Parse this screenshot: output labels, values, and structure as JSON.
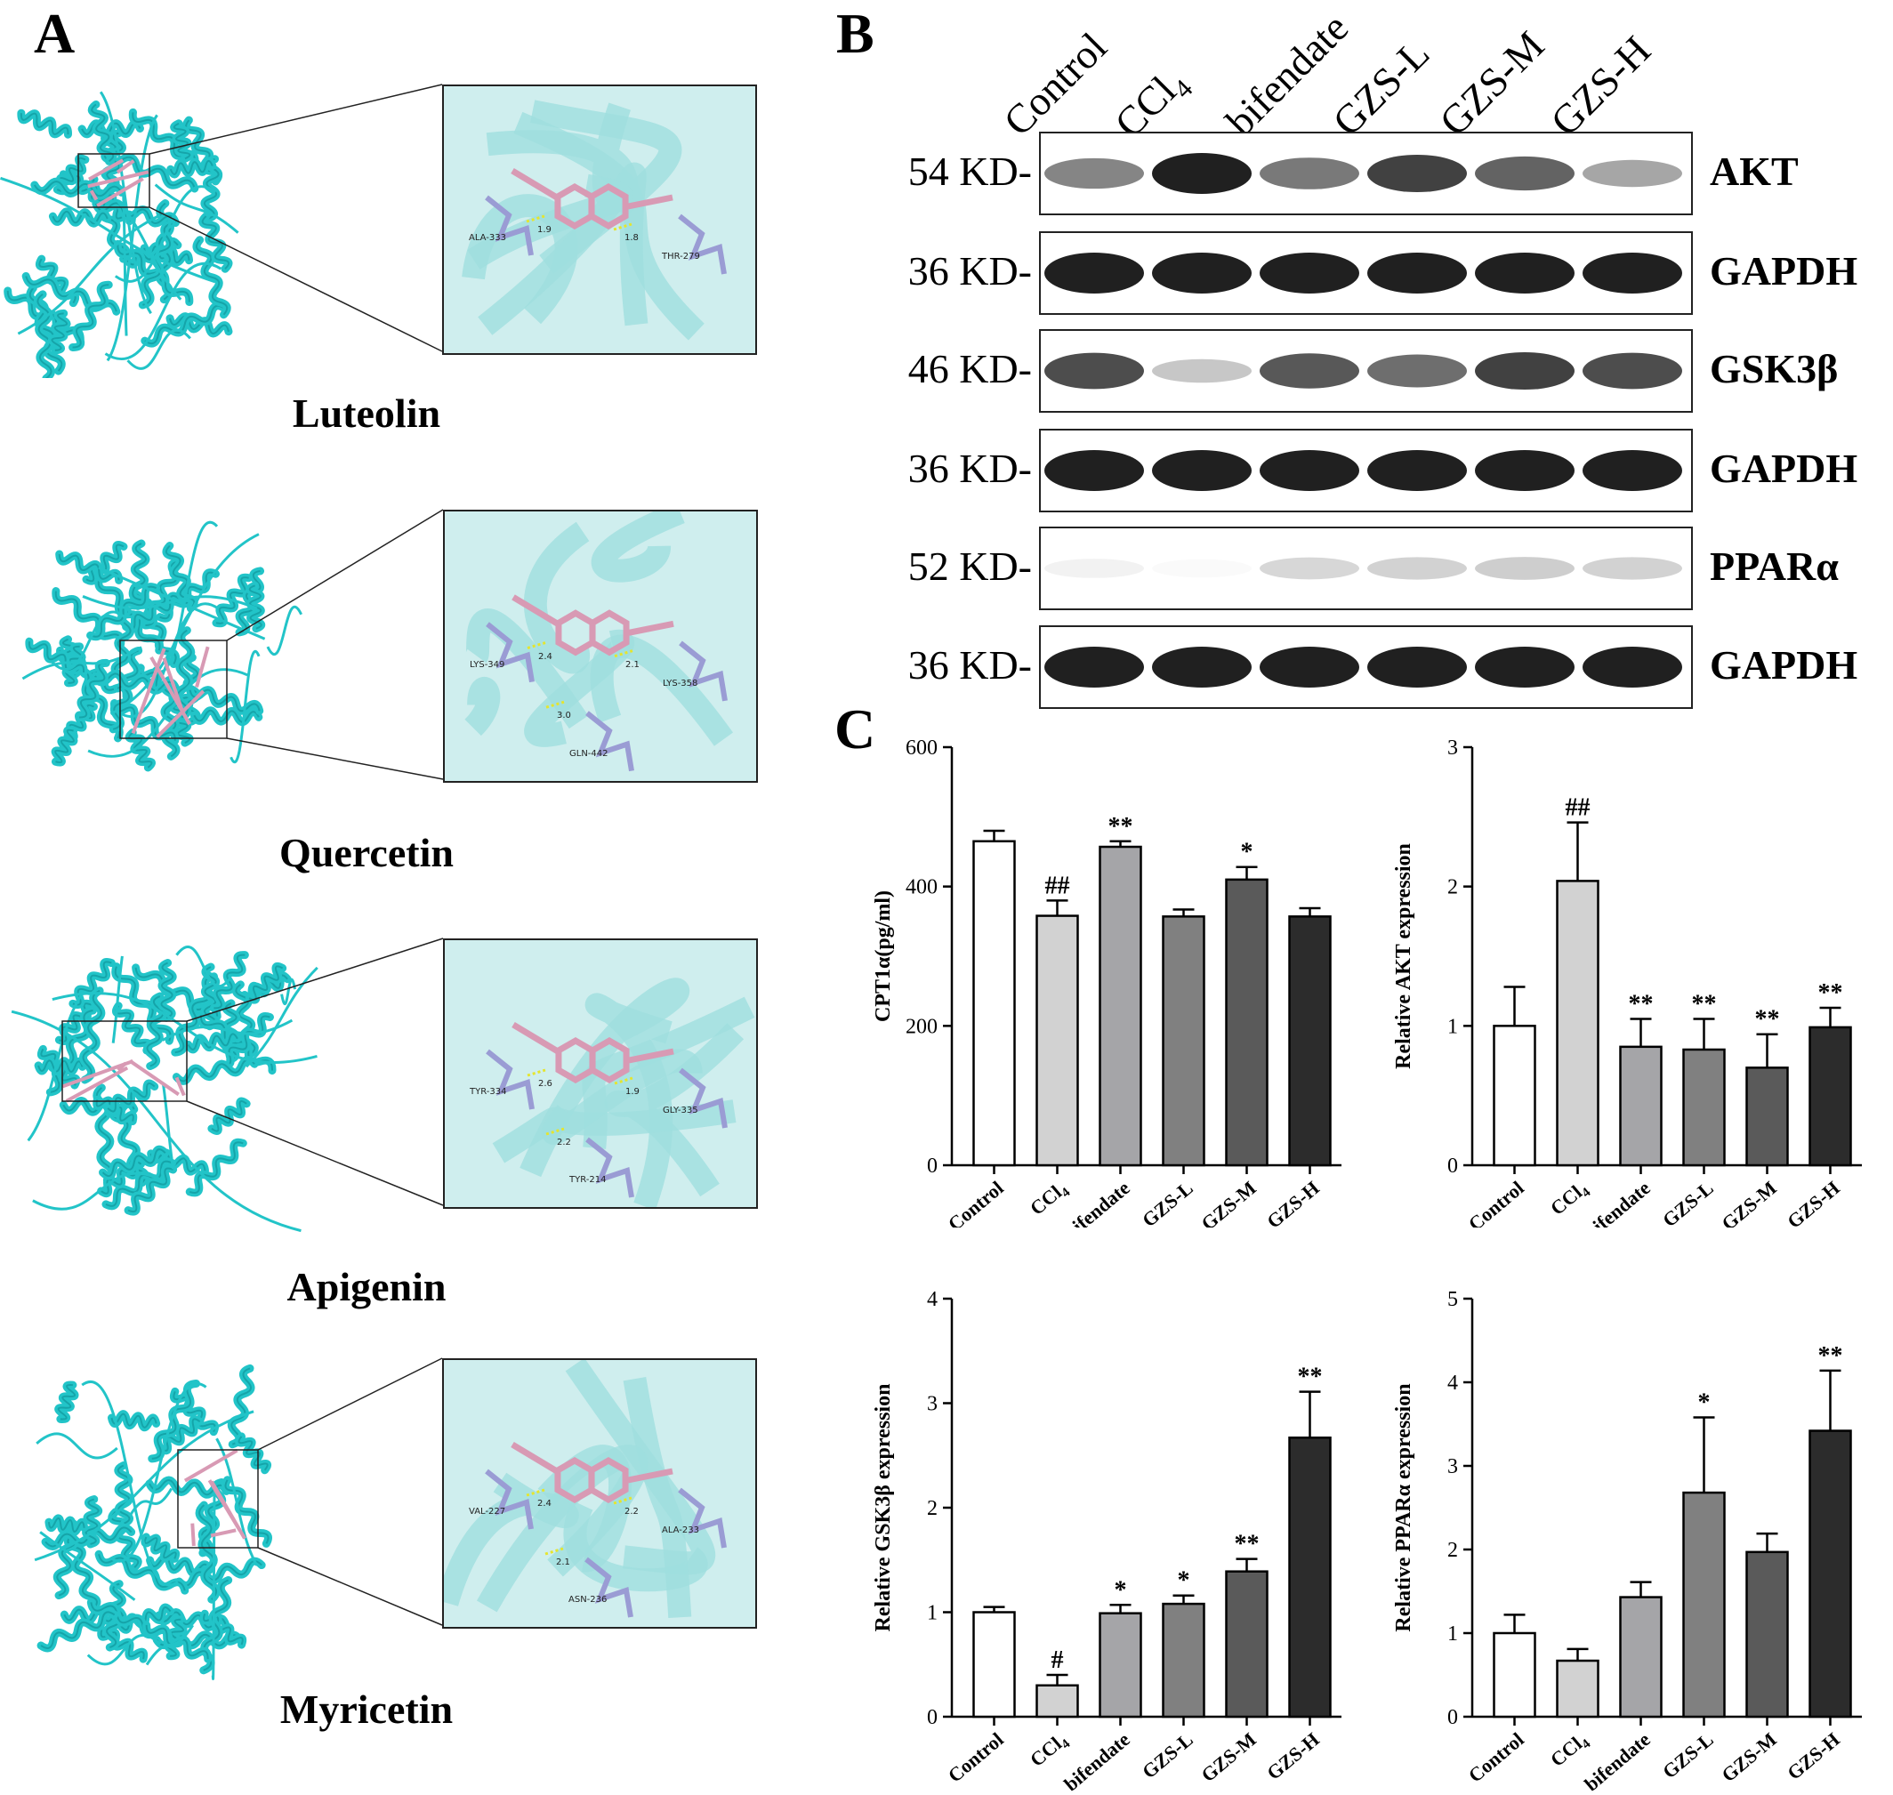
{
  "panels": {
    "a": "A",
    "b": "B",
    "c": "C"
  },
  "docking": [
    {
      "name": "Luteolin",
      "residues": [
        "ALA-333",
        "THR-279"
      ],
      "distances": [
        "1.9",
        "1.8"
      ]
    },
    {
      "name": "Quercetin",
      "residues": [
        "LYS-349",
        "LYS-358",
        "GLN-442"
      ],
      "distances": [
        "2.4",
        "2.1",
        "3.0"
      ]
    },
    {
      "name": "Apigenin",
      "residues": [
        "TYR-334",
        "GLY-335",
        "TYR-214"
      ],
      "distances": [
        "2.6",
        "1.9",
        "2.2"
      ]
    },
    {
      "name": "Myricetin",
      "residues": [
        "VAL-227",
        "ALA-233",
        "ASN-236"
      ],
      "distances": [
        "2.4",
        "2.2",
        "2.1"
      ]
    }
  ],
  "western": {
    "lanes": [
      "Control",
      "CCl",
      "bifendate",
      "GZS-L",
      "GZS-M",
      "GZS-H"
    ],
    "lane_subscript": "4",
    "rows": [
      {
        "kd": "54 KD-",
        "protein": "AKT",
        "intensity": [
          0.55,
          1.0,
          0.6,
          0.85,
          0.7,
          0.4
        ]
      },
      {
        "kd": "36 KD-",
        "protein": "GAPDH",
        "intensity": [
          1,
          1,
          1,
          1,
          1,
          1
        ]
      },
      {
        "kd": "46 KD-",
        "protein": "GSK3β",
        "intensity": [
          0.8,
          0.25,
          0.75,
          0.65,
          0.85,
          0.8
        ]
      },
      {
        "kd": "36 KD-",
        "protein": "GAPDH",
        "intensity": [
          1,
          1,
          1,
          1,
          1,
          1
        ]
      },
      {
        "kd": "52 KD-",
        "protein": "PPARα",
        "intensity": [
          0.06,
          0.02,
          0.18,
          0.2,
          0.22,
          0.2
        ]
      },
      {
        "kd": "36 KD-",
        "protein": "GAPDH",
        "intensity": [
          1,
          1,
          1,
          1,
          1,
          1
        ]
      }
    ]
  },
  "chart_data": [
    {
      "type": "bar",
      "categories": [
        "Control",
        "CCl4",
        "bifendate",
        "GZS-L",
        "GZS-M",
        "GZS-H"
      ],
      "values": [
        465,
        358,
        457,
        357,
        410,
        357
      ],
      "errors": [
        15,
        22,
        8,
        10,
        18,
        12
      ],
      "marks": [
        "",
        "##",
        "**",
        "",
        "*",
        ""
      ],
      "ylabel": "CPT1α(pg/ml)",
      "ylim": [
        0,
        600
      ],
      "yticks": [
        "0",
        "200",
        "400",
        "600"
      ]
    },
    {
      "type": "bar",
      "categories": [
        "Control",
        "CCl4",
        "bifendate",
        "GZS-L",
        "GZS-M",
        "GZS-H"
      ],
      "values": [
        1.0,
        2.04,
        0.85,
        0.83,
        0.7,
        0.99
      ],
      "errors": [
        0.28,
        0.42,
        0.2,
        0.22,
        0.24,
        0.14
      ],
      "marks": [
        "",
        "##",
        "**",
        "**",
        "**",
        "**"
      ],
      "ylabel": "Relative AKT expression",
      "ylim": [
        0,
        3
      ],
      "yticks": [
        "0",
        "1",
        "2",
        "3"
      ]
    },
    {
      "type": "bar",
      "categories": [
        "Control",
        "CCl4",
        "bifendate",
        "GZS-L",
        "GZS-M",
        "GZS-H"
      ],
      "values": [
        1.0,
        0.3,
        0.99,
        1.08,
        1.39,
        2.67
      ],
      "errors": [
        0.05,
        0.1,
        0.08,
        0.08,
        0.12,
        0.44
      ],
      "marks": [
        "",
        "#",
        "*",
        "*",
        "**",
        "**"
      ],
      "ylabel": "Relative GSK3β expression",
      "ylim": [
        0,
        4
      ],
      "yticks": [
        "0",
        "1",
        "2",
        "3",
        "4"
      ]
    },
    {
      "type": "bar",
      "categories": [
        "Control",
        "CCl4",
        "bifendate",
        "GZS-L",
        "GZS-M",
        "GZS-H"
      ],
      "values": [
        1.0,
        0.67,
        1.43,
        2.68,
        1.97,
        3.42
      ],
      "errors": [
        0.22,
        0.14,
        0.18,
        0.9,
        0.22,
        0.72
      ],
      "marks": [
        "",
        "",
        "",
        "*",
        "",
        "**"
      ],
      "ylabel": "Relative PPARα expression",
      "ylim": [
        0,
        5
      ],
      "yticks": [
        "0",
        "1",
        "2",
        "3",
        "4",
        "5"
      ]
    }
  ],
  "colors": {
    "bars": [
      "#ffffff",
      "#d2d2d2",
      "#a5a5a8",
      "#808080",
      "#5a5a5a",
      "#2c2c2c"
    ],
    "protein": "#22c4c8",
    "ligand": "#d89ab4",
    "residue": "#9a9cd4",
    "zoom_bg": "#cfeeee"
  }
}
